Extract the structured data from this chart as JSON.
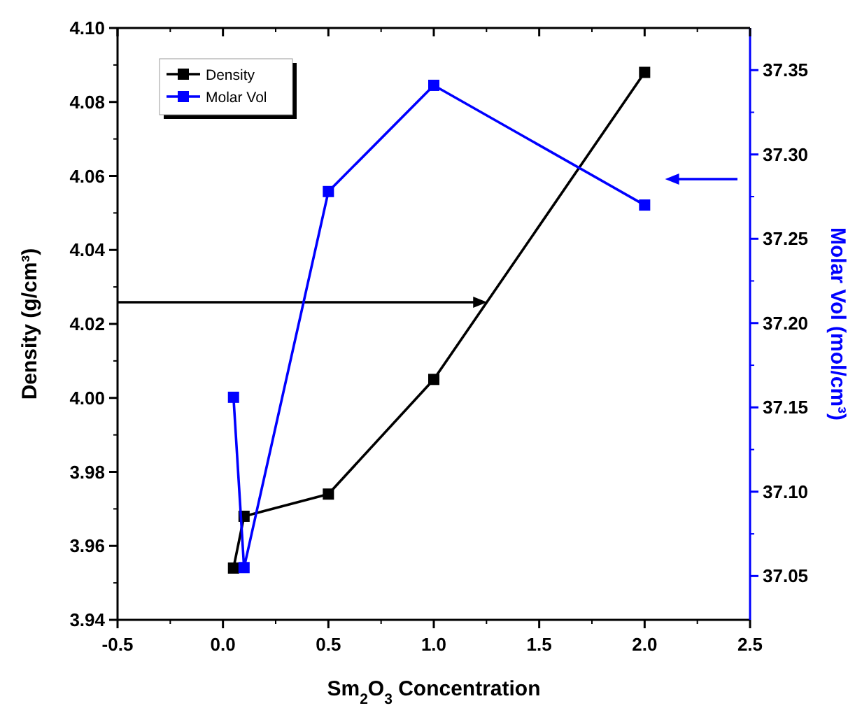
{
  "chart_data": {
    "type": "line",
    "xlabel": "Sm$_{2}$O$_{3}$ Concentration",
    "ylabel": "Density (g/cm³)",
    "y2label": "Molar Vol (mol/cm³)",
    "x": [
      0.05,
      0.1,
      0.5,
      1.0,
      2.0
    ],
    "series": [
      {
        "name": "Density",
        "color": "#000000",
        "values": [
          3.954,
          3.968,
          3.974,
          4.005,
          4.088
        ]
      },
      {
        "name": "Molar Vol",
        "color": "#0000ff",
        "axis": "y2",
        "values": [
          37.156,
          37.055,
          37.278,
          37.341,
          37.27
        ]
      }
    ],
    "xlim": [
      -0.5,
      2.5
    ],
    "xticks": [
      -0.5,
      {
        "value": 0,
        "label": "0.0"
      },
      0.5,
      {
        "value": 1,
        "label": "1.0"
      },
      1.5,
      {
        "value": 2,
        "label": "2.0"
      },
      2.5
    ],
    "ylim": [
      3.94,
      4.1
    ],
    "yticks": [
      {
        "value": 3.94,
        "label": "3.94"
      },
      {
        "value": 3.96,
        "label": "3.96"
      },
      {
        "value": 3.98,
        "label": "3.98"
      },
      {
        "value": 4.0,
        "label": "4.00"
      },
      {
        "value": 4.02,
        "label": "4.02"
      },
      {
        "value": 4.04,
        "label": "4.04"
      },
      {
        "value": 4.06,
        "label": "4.06"
      },
      {
        "value": 4.08,
        "label": "4.08"
      },
      {
        "value": 4.1,
        "label": "4.10"
      }
    ],
    "y2lim": [
      37.024,
      37.375
    ],
    "y2ticks": [
      37.05,
      {
        "value": 37.1,
        "label": "37.10"
      },
      37.15,
      {
        "value": 37.2,
        "label": "37.20"
      },
      37.25,
      {
        "value": 37.3,
        "label": "37.30"
      },
      37.35
    ],
    "marker": "square",
    "line_style": "solid",
    "legend": "top left",
    "grid": false
  }
}
